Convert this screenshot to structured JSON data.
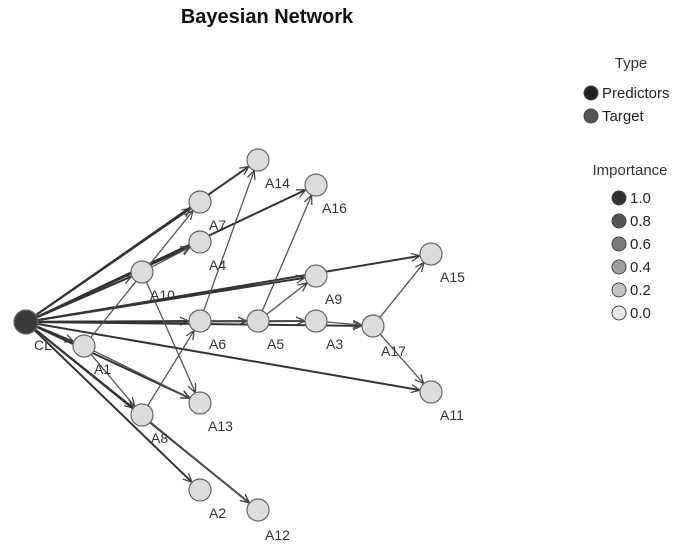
{
  "title": "Bayesian Network",
  "legend": {
    "type_heading": "Type",
    "type_items": [
      {
        "label": "Predictors",
        "color": "#222222"
      },
      {
        "label": "Target",
        "color": "#555555"
      }
    ],
    "importance_heading": "Importance",
    "importance_items": [
      {
        "label": "1.0",
        "color": "#333333"
      },
      {
        "label": "0.8",
        "color": "#555555"
      },
      {
        "label": "0.6",
        "color": "#7a7a7a"
      },
      {
        "label": "0.4",
        "color": "#9e9e9e"
      },
      {
        "label": "0.2",
        "color": "#c4c4c4"
      },
      {
        "label": "0.0",
        "color": "#e6e6e6"
      }
    ]
  },
  "node_colors": {
    "target_fill": "#3a3a3a",
    "predictor_fill": "#dcdcdc",
    "stroke": "#666666"
  },
  "nodes": [
    {
      "id": "CL",
      "label": "CL",
      "role": "target"
    },
    {
      "id": "A1",
      "label": "A1"
    },
    {
      "id": "A2",
      "label": "A2"
    },
    {
      "id": "A3",
      "label": "A3"
    },
    {
      "id": "A4",
      "label": "A4"
    },
    {
      "id": "A5",
      "label": "A5"
    },
    {
      "id": "A6",
      "label": "A6"
    },
    {
      "id": "A7",
      "label": "A7"
    },
    {
      "id": "A8",
      "label": "A8"
    },
    {
      "id": "A9",
      "label": "A9"
    },
    {
      "id": "A10",
      "label": "A10"
    },
    {
      "id": "A11",
      "label": "A11"
    },
    {
      "id": "A12",
      "label": "A12"
    },
    {
      "id": "A13",
      "label": "A13"
    },
    {
      "id": "A14",
      "label": "A14"
    },
    {
      "id": "A15",
      "label": "A15"
    },
    {
      "id": "A16",
      "label": "A16"
    },
    {
      "id": "A17",
      "label": "A17"
    }
  ],
  "edges": [
    [
      "CL",
      "A1"
    ],
    [
      "CL",
      "A2"
    ],
    [
      "CL",
      "A3"
    ],
    [
      "CL",
      "A4"
    ],
    [
      "CL",
      "A5"
    ],
    [
      "CL",
      "A6"
    ],
    [
      "CL",
      "A7"
    ],
    [
      "CL",
      "A8"
    ],
    [
      "CL",
      "A9"
    ],
    [
      "CL",
      "A10"
    ],
    [
      "CL",
      "A11"
    ],
    [
      "CL",
      "A12"
    ],
    [
      "CL",
      "A13"
    ],
    [
      "CL",
      "A14"
    ],
    [
      "CL",
      "A15"
    ],
    [
      "CL",
      "A16"
    ],
    [
      "CL",
      "A17"
    ],
    [
      "A1",
      "A7"
    ],
    [
      "A1",
      "A8"
    ],
    [
      "A1",
      "A13"
    ],
    [
      "A10",
      "A4"
    ],
    [
      "A10",
      "A13"
    ],
    [
      "A8",
      "A6"
    ],
    [
      "A8",
      "A12"
    ],
    [
      "A6",
      "A14"
    ],
    [
      "A6",
      "A5"
    ],
    [
      "A5",
      "A16"
    ],
    [
      "A5",
      "A9"
    ],
    [
      "A5",
      "A3"
    ],
    [
      "A3",
      "A17"
    ],
    [
      "A17",
      "A15"
    ],
    [
      "A17",
      "A11"
    ]
  ]
}
